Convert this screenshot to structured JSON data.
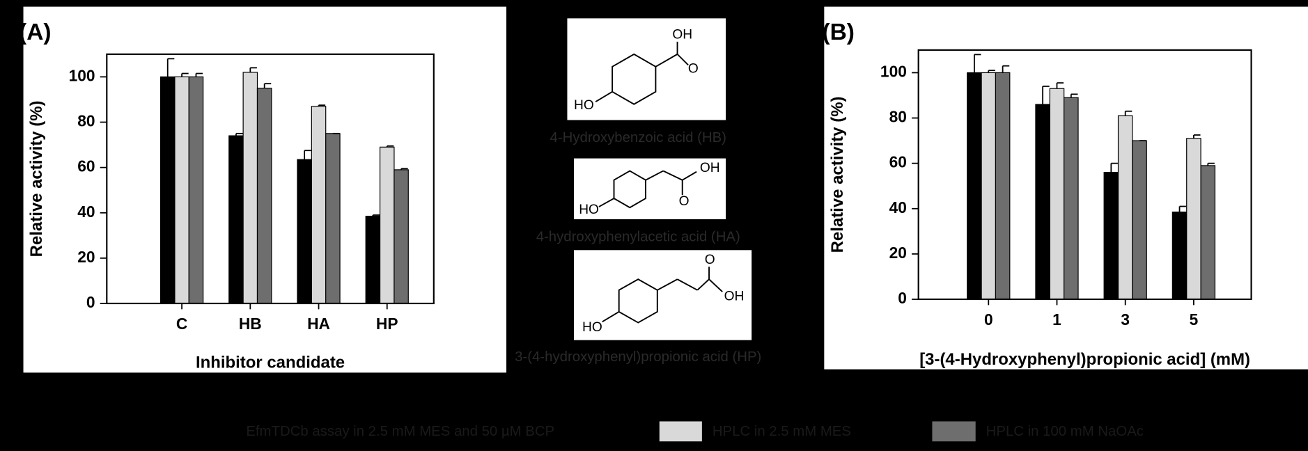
{
  "chart_data": [
    {
      "type": "bar",
      "panel_label": "(A)",
      "x_label": "Inhibitor candidate",
      "y_label": "Relative activity (%)",
      "categories": [
        "C",
        "HB",
        "HA",
        "HP"
      ],
      "series": [
        {
          "name": "EfmTDCb assay in 2.5 mM MES and 50 µM BCP",
          "color": "#000000",
          "values": [
            100,
            74,
            63.5,
            38.5
          ],
          "errors": [
            8,
            1,
            4,
            0.5
          ]
        },
        {
          "name": "HPLC in 2.5 mM MES",
          "color": "#d9d9d9",
          "values": [
            100,
            102,
            87,
            69
          ],
          "errors": [
            1.5,
            2,
            0.5,
            0.5
          ]
        },
        {
          "name": "HPLC in 100 mM NaOAc",
          "color": "#6e6e6e",
          "values": [
            100,
            95,
            75,
            59
          ],
          "errors": [
            1.5,
            2,
            0,
            0.5
          ]
        }
      ],
      "ylim": [
        0,
        110
      ],
      "yticks": [
        0,
        20,
        40,
        60,
        80,
        100
      ]
    },
    {
      "type": "bar",
      "panel_label": "(B)",
      "x_label": "[3-(4-Hydroxyphenyl)propionic acid] (mM)",
      "y_label": "Relative activity (%)",
      "categories": [
        "0",
        "1",
        "3",
        "5"
      ],
      "series": [
        {
          "name": "EfmTDCb assay in 2.5 mM MES and 50 µM BCP",
          "color": "#000000",
          "values": [
            100,
            86,
            56,
            38.5
          ],
          "errors": [
            8,
            8,
            4,
            2.5
          ]
        },
        {
          "name": "HPLC in 2.5 mM MES",
          "color": "#d9d9d9",
          "values": [
            100,
            93,
            81,
            71
          ],
          "errors": [
            1,
            2.5,
            2,
            1.5
          ]
        },
        {
          "name": "HPLC in 100 mM NaOAc",
          "color": "#6e6e6e",
          "values": [
            100,
            89,
            70,
            59
          ],
          "errors": [
            3,
            1.5,
            0,
            1
          ]
        }
      ],
      "ylim": [
        0,
        110
      ],
      "yticks": [
        0,
        20,
        40,
        60,
        80,
        100
      ]
    }
  ],
  "structures": [
    {
      "name": "4-Hydroxybenzoic acid (HB)",
      "atoms": [
        "OH",
        "O",
        "HO"
      ]
    },
    {
      "name": "4-hydroxyphenylacetic acid (HA)",
      "atoms": [
        "OH",
        "O",
        "HO"
      ]
    },
    {
      "name": "3-(4-hydroxyphenyl)propionic acid (HP)",
      "atoms": [
        "O",
        "OH",
        "HO"
      ]
    }
  ]
}
